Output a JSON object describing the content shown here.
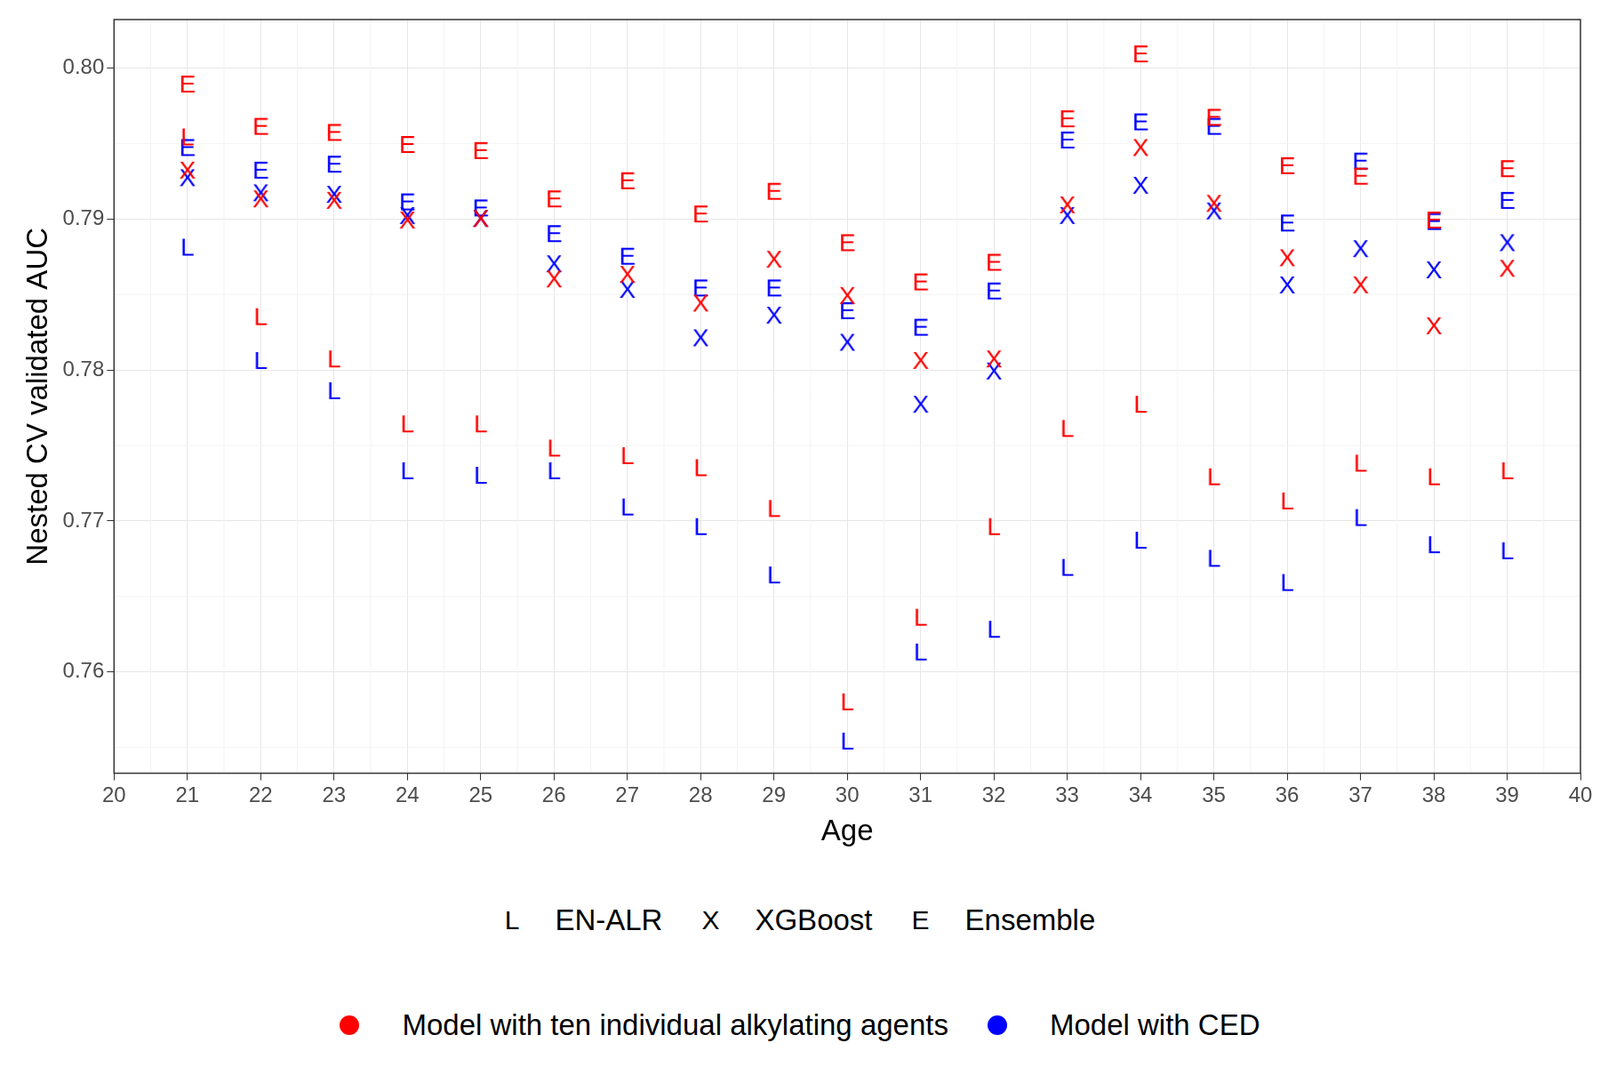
{
  "chart_data": {
    "type": "scatter",
    "x_label": "Age",
    "y_label": "Nested CV validated AUC",
    "x": [
      21,
      22,
      23,
      24,
      25,
      26,
      27,
      28,
      29,
      30,
      31,
      32,
      33,
      34,
      35,
      36,
      37,
      38,
      39
    ],
    "xlim": [
      20,
      40
    ],
    "xticks": [
      20,
      21,
      22,
      23,
      24,
      25,
      26,
      27,
      28,
      29,
      30,
      31,
      32,
      33,
      34,
      35,
      36,
      37,
      38,
      39,
      40
    ],
    "ylim": [
      0.7533,
      0.8032
    ],
    "yticks": [
      0.76,
      0.77,
      0.78,
      0.79,
      {
        "value": 0.8,
        "label": "0.80"
      }
    ],
    "grid": true,
    "series": [
      {
        "name": "EN-ALR",
        "group": "Model with ten individual alkylating agents",
        "marker": "L",
        "color": "#ff0000",
        "values": [
          0.7954,
          0.7835,
          0.7807,
          0.7764,
          0.7764,
          0.7748,
          0.7743,
          0.7735,
          0.7708,
          0.758,
          0.7636,
          0.7696,
          0.7761,
          0.7777,
          0.7729,
          0.7713,
          0.7738,
          0.7729,
          0.7733
        ]
      },
      {
        "name": "EN-ALR",
        "group": "Model with CED",
        "marker": "L",
        "color": "#0000ff",
        "values": [
          0.7881,
          0.7806,
          0.7786,
          0.7733,
          0.773,
          0.7733,
          0.7709,
          0.7696,
          0.7664,
          0.7554,
          0.7613,
          0.7628,
          0.7669,
          0.7687,
          0.7675,
          0.7659,
          0.7702,
          0.7684,
          0.768
        ]
      },
      {
        "name": "XGBoost",
        "group": "Model with ten individual alkylating agents",
        "marker": "X",
        "color": "#ff0000",
        "values": [
          0.7932,
          0.7913,
          0.7912,
          0.7899,
          0.79,
          0.786,
          0.7863,
          0.7844,
          0.7873,
          0.7849,
          0.7806,
          0.7807,
          0.7909,
          0.7947,
          0.791,
          0.7874,
          0.7856,
          0.7829,
          0.7867
        ]
      },
      {
        "name": "XGBoost",
        "group": "Model with CED",
        "marker": "X",
        "color": "#0000ff",
        "values": [
          0.7927,
          0.7917,
          0.7916,
          0.7902,
          0.79,
          0.787,
          0.7853,
          0.7821,
          0.7836,
          0.7818,
          0.7777,
          0.7799,
          0.7902,
          0.7922,
          0.7905,
          0.7856,
          0.788,
          0.7866,
          0.7884
        ]
      },
      {
        "name": "Ensemble",
        "group": "Model with ten individual alkylating agents",
        "marker": "E",
        "color": "#ff0000",
        "values": [
          0.7989,
          0.7961,
          0.7957,
          0.7949,
          0.7945,
          0.7913,
          0.7925,
          0.7903,
          0.7918,
          0.7884,
          0.7858,
          0.7871,
          0.7966,
          0.8009,
          0.7967,
          0.7935,
          0.7928,
          0.7899,
          0.7933
        ]
      },
      {
        "name": "Ensemble",
        "group": "Model with CED",
        "marker": "E",
        "color": "#0000ff",
        "values": [
          0.7947,
          0.7932,
          0.7936,
          0.7911,
          0.7907,
          0.789,
          0.7875,
          0.7854,
          0.7854,
          0.7839,
          0.7828,
          0.7852,
          0.7952,
          0.7964,
          0.7961,
          0.7897,
          0.7938,
          0.7898,
          0.7912
        ]
      }
    ]
  }
}
